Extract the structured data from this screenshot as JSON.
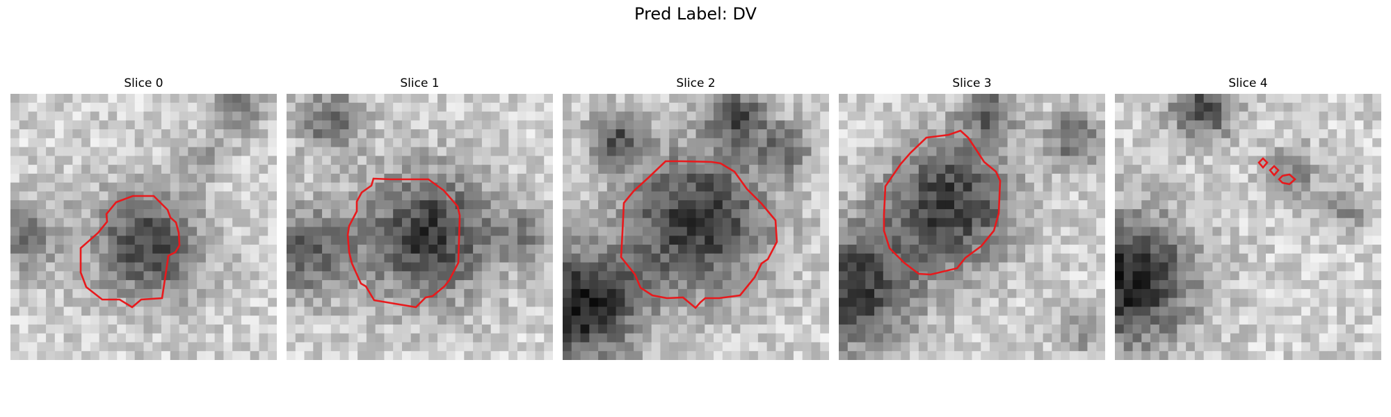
{
  "figure": {
    "title": "Pred Label: DV"
  },
  "panels": [
    {
      "title": "Slice 0"
    },
    {
      "title": "Slice 1"
    },
    {
      "title": "Slice 2"
    },
    {
      "title": "Slice 3"
    },
    {
      "title": "Slice 4"
    }
  ],
  "colors": {
    "contour": "#e8191c",
    "background": "#ffffff"
  }
}
